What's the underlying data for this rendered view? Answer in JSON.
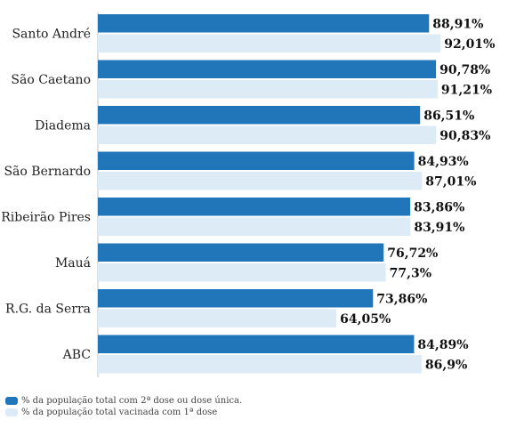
{
  "chart_data": {
    "type": "bar",
    "orientation": "horizontal",
    "categories": [
      "Santo André",
      "São Caetano",
      "Diadema",
      "São Bernardo",
      "Ribeirão Pires",
      "Mauá",
      "R.G. da Serra",
      "ABC"
    ],
    "series": [
      {
        "name": "% da população total com 2ª dose ou dose única.",
        "color": "#2175b9",
        "values": [
          88.91,
          90.78,
          86.51,
          84.93,
          83.86,
          76.72,
          73.86,
          84.89
        ],
        "labels": [
          "88,91%",
          "90,78%",
          "86,51%",
          "84,93%",
          "83,86%",
          "76,72%",
          "73,86%",
          "84,89%"
        ]
      },
      {
        "name": "% da população total vacinada com 1ª dose",
        "color": "#dcebf5",
        "values": [
          92.01,
          91.21,
          90.83,
          87.01,
          83.91,
          77.3,
          64.05,
          86.9
        ],
        "labels": [
          "92,01%",
          "91,21%",
          "90,83%",
          "87,01%",
          "83,91%",
          "77,3%",
          "64,05%",
          "86,9%"
        ]
      }
    ],
    "xlim": [
      0,
      100
    ],
    "grid": false,
    "legend_position": "bottom-left"
  }
}
